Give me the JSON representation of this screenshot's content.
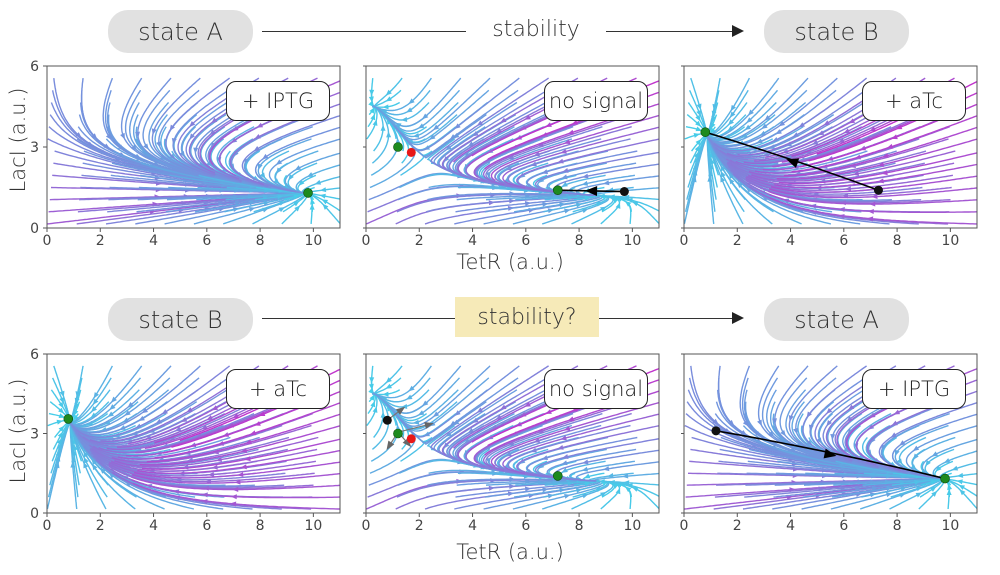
{
  "rows": [
    {
      "from_state": "state A",
      "flow_label": "stability",
      "to_state": "state B",
      "highlight": false
    },
    {
      "from_state": "state B",
      "flow_label": "stability?",
      "to_state": "state A",
      "highlight": true
    }
  ],
  "axes": {
    "xlabel": "TetR (a.u.)",
    "ylabel": "LacI (a.u.)",
    "xticks": [
      0,
      2,
      4,
      6,
      8,
      10
    ],
    "yticks": [
      0,
      3,
      6
    ],
    "xlim": [
      0,
      11
    ],
    "ylim": [
      0,
      6
    ]
  },
  "panels": [
    {
      "label": "+ IPTG",
      "condition": "IPTG",
      "stable_points": [
        [
          9.8,
          1.3
        ]
      ],
      "unstable_points": [],
      "trajectory": []
    },
    {
      "label": "no signal",
      "condition": "none",
      "stable_points": [
        [
          1.2,
          3.0
        ],
        [
          7.2,
          1.4
        ]
      ],
      "unstable_points": [
        [
          1.7,
          2.8
        ]
      ],
      "trajectory": [
        [
          9.7,
          1.35
        ],
        [
          7.2,
          1.4
        ]
      ]
    },
    {
      "label": "+ aTc",
      "condition": "aTc",
      "stable_points": [
        [
          0.8,
          3.55
        ]
      ],
      "unstable_points": [],
      "trajectory": [
        [
          7.3,
          1.4
        ],
        [
          0.8,
          3.55
        ]
      ]
    },
    {
      "label": "+ aTc",
      "condition": "aTc",
      "stable_points": [
        [
          0.8,
          3.55
        ]
      ],
      "unstable_points": [],
      "trajectory": []
    },
    {
      "label": "no signal",
      "condition": "none",
      "stable_points": [
        [
          1.2,
          3.0
        ],
        [
          7.2,
          1.4
        ]
      ],
      "unstable_points": [
        [
          1.7,
          2.8
        ]
      ],
      "trajectory": [],
      "start_point": [
        0.8,
        3.5
      ]
    },
    {
      "label": "+ IPTG",
      "condition": "IPTG",
      "stable_points": [
        [
          9.8,
          1.3
        ]
      ],
      "unstable_points": [],
      "trajectory": [
        [
          1.2,
          3.1
        ],
        [
          9.8,
          1.3
        ]
      ]
    }
  ],
  "colors": {
    "stream_low": "#40d4ea",
    "stream_high": "#d020c8",
    "stable": "#1e8a1e",
    "unstable": "#e81818",
    "trajectory": "#000000",
    "pill_bg": "#e1e1e1",
    "highlight_bg": "#f6eab8"
  }
}
